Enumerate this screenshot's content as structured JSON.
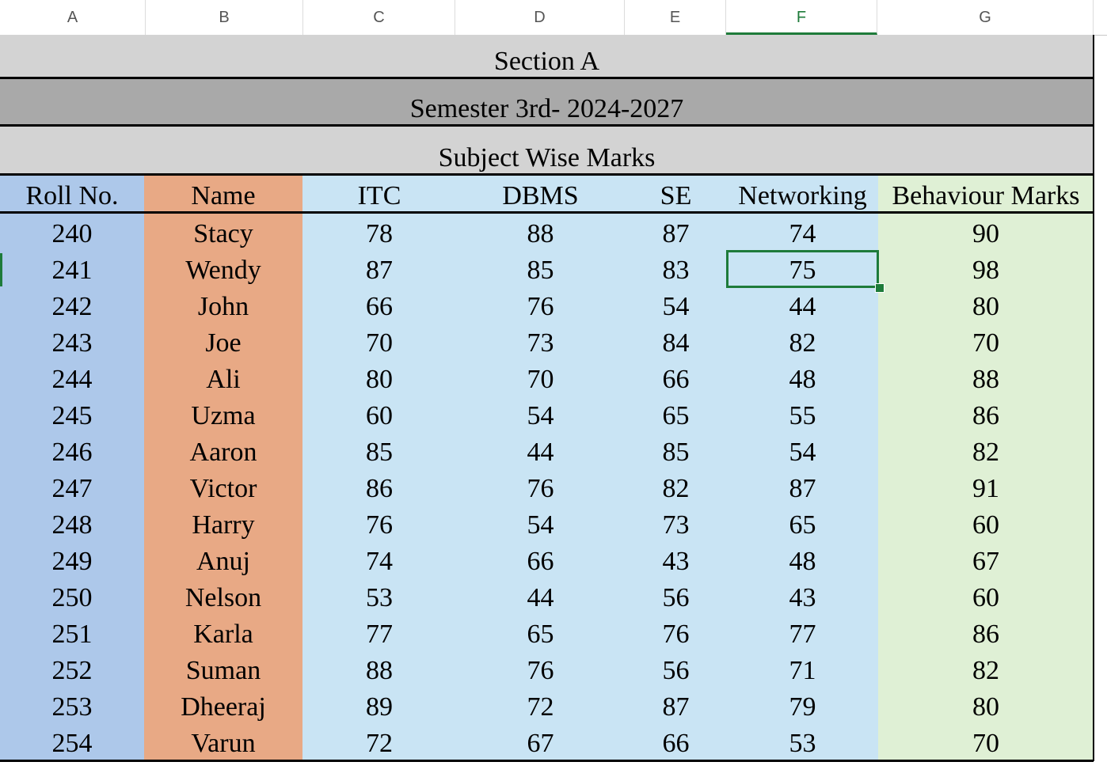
{
  "columns": [
    "A",
    "B",
    "C",
    "D",
    "E",
    "F",
    "G"
  ],
  "selected_column": "F",
  "banners": {
    "section": "Section A",
    "semester": "Semester 3rd- 2024-2027",
    "subject": "Subject Wise Marks"
  },
  "table": {
    "headers": [
      "Roll No.",
      "Name",
      "ITC",
      "DBMS",
      "SE",
      "Networking",
      "Behaviour Marks"
    ],
    "rows": [
      [
        "240",
        "Stacy",
        "78",
        "88",
        "87",
        "74",
        "90"
      ],
      [
        "241",
        "Wendy",
        "87",
        "85",
        "83",
        "75",
        "98"
      ],
      [
        "242",
        "John",
        "66",
        "76",
        "54",
        "44",
        "80"
      ],
      [
        "243",
        "Joe",
        "70",
        "73",
        "84",
        "82",
        "70"
      ],
      [
        "244",
        "Ali",
        "80",
        "70",
        "66",
        "48",
        "88"
      ],
      [
        "245",
        "Uzma",
        "60",
        "54",
        "65",
        "55",
        "86"
      ],
      [
        "246",
        "Aaron",
        "85",
        "44",
        "85",
        "54",
        "82"
      ],
      [
        "247",
        "Victor",
        "86",
        "76",
        "82",
        "87",
        "91"
      ],
      [
        "248",
        "Harry",
        "76",
        "54",
        "73",
        "65",
        "60"
      ],
      [
        "249",
        "Anuj",
        "74",
        "66",
        "43",
        "48",
        "67"
      ],
      [
        "250",
        "Nelson",
        "53",
        "44",
        "56",
        "43",
        "60"
      ],
      [
        "251",
        "Karla",
        "77",
        "65",
        "76",
        "77",
        "86"
      ],
      [
        "252",
        "Suman",
        "88",
        "76",
        "56",
        "71",
        "82"
      ],
      [
        "253",
        "Dheeraj",
        "89",
        "72",
        "87",
        "79",
        "80"
      ],
      [
        "254",
        "Varun",
        "72",
        "67",
        "66",
        "53",
        "70"
      ]
    ]
  },
  "selected_cell": {
    "column": "F",
    "row_index": 1
  },
  "colors": {
    "roll_bg": "#adc8ea",
    "name_bg": "#e8a985",
    "marks_bg": "#c9e4f4",
    "behaviour_bg": "#dff0d5",
    "banner_light": "#d3d3d3",
    "banner_dark": "#a9a9a9",
    "selection": "#1e7b3a"
  }
}
